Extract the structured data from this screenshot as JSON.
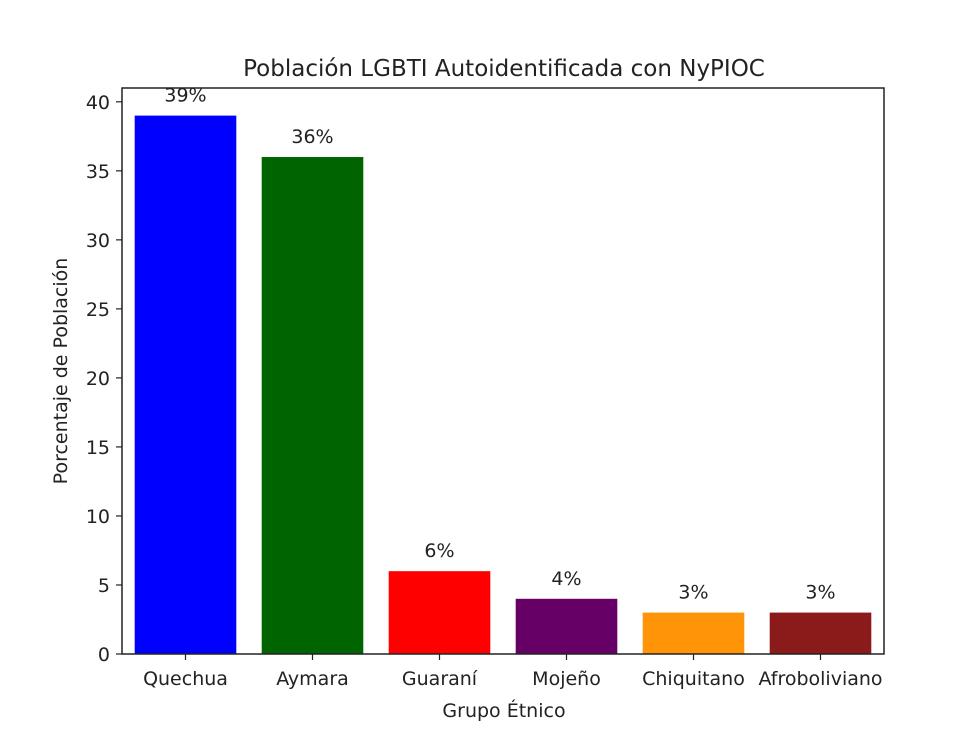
{
  "chart_data": {
    "type": "bar",
    "title": "Población LGBTI Autoidentificada con NyPIOC",
    "xlabel": "Grupo Étnico",
    "ylabel": "Porcentaje de Población",
    "ylim": [
      0,
      41
    ],
    "yticks": [
      0,
      5,
      10,
      15,
      20,
      25,
      30,
      35,
      40
    ],
    "categories": [
      "Quechua",
      "Aymara",
      "Guaraní",
      "Mojeño",
      "Chiquitano",
      "Afroboliviano"
    ],
    "values": [
      39,
      36,
      6,
      4,
      3,
      3
    ],
    "data_labels": [
      "39%",
      "36%",
      "6%",
      "4%",
      "3%",
      "3%"
    ],
    "colors": [
      "#0000ff",
      "#006400",
      "#ff0000",
      "#660066",
      "#ff9408",
      "#8b1a1a"
    ],
    "grid": false,
    "legend": "none"
  }
}
